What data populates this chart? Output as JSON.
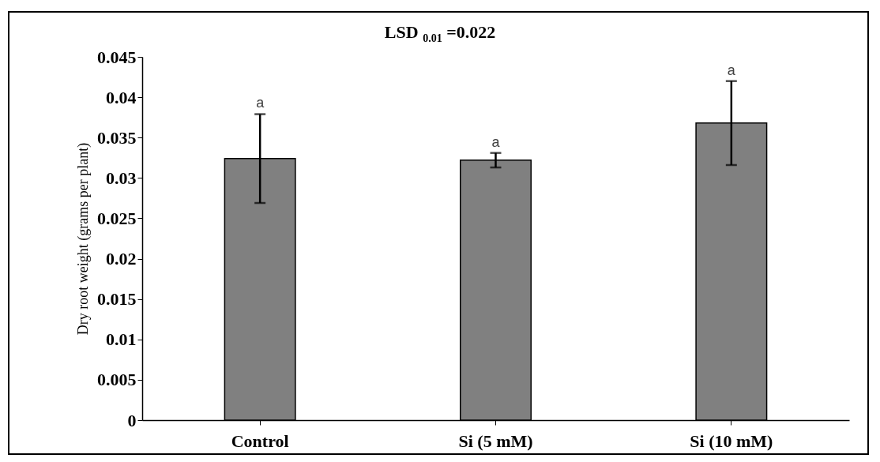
{
  "chart_data": {
    "type": "bar",
    "title": "LSD $_{0.01}$ =0.022",
    "ylabel": "Dry root weight (grams per plant)",
    "categories": [
      "Control",
      "Si (5 mM)",
      "Si (10 mM)"
    ],
    "values": [
      0.0324,
      0.0322,
      0.0368
    ],
    "errors": [
      0.0055,
      0.0009,
      0.0052
    ],
    "color": "#808080",
    "ylim": [
      0,
      0.045
    ],
    "yticks": [
      0,
      0.005,
      0.01,
      0.015,
      0.02,
      0.025,
      0.03,
      0.035,
      0.04,
      0.045
    ],
    "grid": false,
    "annotations": [
      {
        "text": "a",
        "x": "Control",
        "y": 0.038
      },
      {
        "text": "a",
        "x": "Si (5 mM)",
        "y": 0.0331
      },
      {
        "text": "a",
        "x": "Si (10 mM)",
        "y": 0.042
      }
    ]
  }
}
